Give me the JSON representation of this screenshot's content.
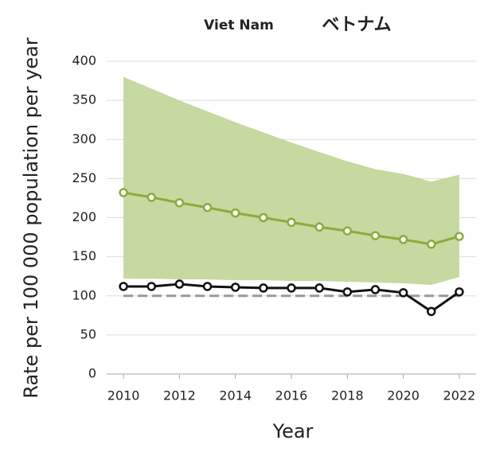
{
  "chart_data": {
    "type": "line",
    "title": "Viet Nam",
    "subtitle": "ベトナム",
    "y_label": "Rate per 100 000 population per year",
    "x_label": "Year",
    "x": [
      2010,
      2011,
      2012,
      2013,
      2014,
      2015,
      2016,
      2017,
      2018,
      2019,
      2020,
      2021,
      2022
    ],
    "xlim": [
      2009.4,
      2022.6
    ],
    "xticks": [
      2010,
      2012,
      2014,
      2016,
      2018,
      2020,
      2022
    ],
    "ylim": [
      0,
      400
    ],
    "yticks": [
      0,
      50,
      100,
      150,
      200,
      250,
      300,
      350,
      400
    ],
    "grid": true,
    "band": {
      "color": "#c5d9a0",
      "upper": [
        380,
        365,
        350,
        336,
        322,
        309,
        296,
        284,
        272,
        262,
        256,
        246,
        255
      ],
      "lower": [
        122,
        122,
        121,
        121,
        120,
        120,
        119,
        119,
        118,
        117,
        116,
        114,
        124
      ]
    },
    "reference_line": {
      "value": 100,
      "color": "#999999"
    },
    "series": [
      {
        "color": "#8aab3c",
        "values": [
          232,
          226,
          219,
          213,
          206,
          200,
          194,
          188,
          183,
          177,
          172,
          166,
          176
        ]
      },
      {
        "color": "#111111",
        "values": [
          112,
          112,
          115,
          112,
          111,
          110,
          110,
          110,
          105,
          108,
          104,
          80,
          105
        ]
      }
    ]
  }
}
